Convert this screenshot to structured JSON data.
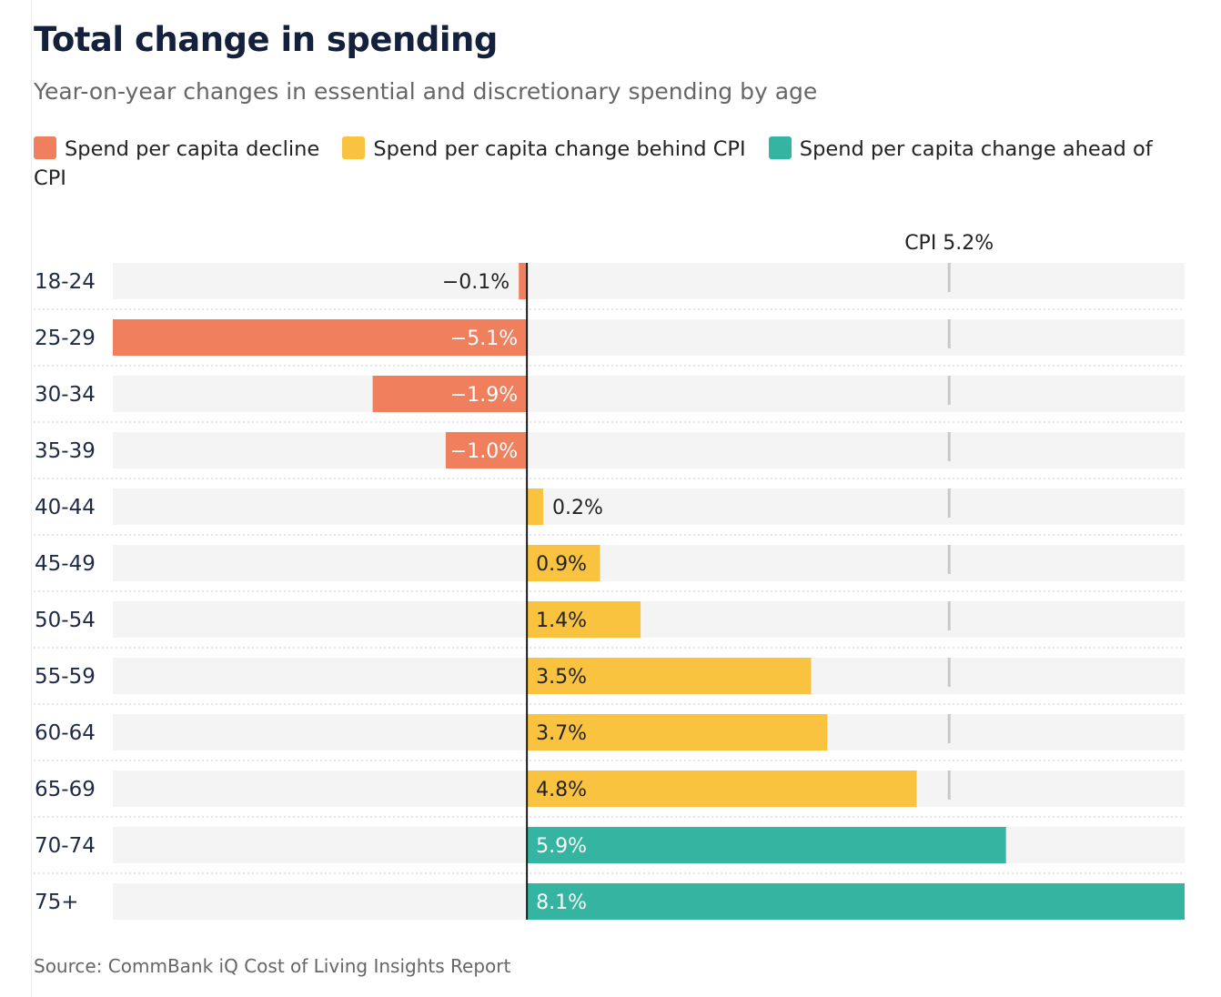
{
  "title": "Total change in spending",
  "subtitle": "Year-on-year changes in essential and discretionary spending by age",
  "legend": [
    {
      "label": "Spend per capita decline",
      "color": "#f07f5e"
    },
    {
      "label": "Spend per capita change behind CPI",
      "color": "#f9c33f"
    },
    {
      "label": "Spend per capita change ahead of CPI",
      "color": "#35b5a1"
    }
  ],
  "source": "Source: CommBank iQ Cost of Living Insights Report",
  "chart_data": {
    "type": "bar",
    "orientation": "horizontal",
    "categories": [
      "18-24",
      "25-29",
      "30-34",
      "35-39",
      "40-44",
      "45-49",
      "50-54",
      "55-59",
      "60-64",
      "65-69",
      "70-74",
      "75+"
    ],
    "values": [
      -0.1,
      -5.1,
      -1.9,
      -1.0,
      0.2,
      0.9,
      1.4,
      3.5,
      3.7,
      4.8,
      5.9,
      8.1
    ],
    "labels": [
      "−0.1%",
      "−5.1%",
      "−1.9%",
      "−1.0%",
      "0.2%",
      "0.9%",
      "1.4%",
      "3.5%",
      "3.7%",
      "4.8%",
      "5.9%",
      "8.1%"
    ],
    "xlim": [
      -5.1,
      8.1
    ],
    "reference_line": {
      "value": 5.2,
      "label": "CPI 5.2%"
    },
    "colors": {
      "decline": "#f07f5e",
      "behind_cpi": "#f9c33f",
      "ahead_cpi": "#35b5a1",
      "track": "#f4f4f4",
      "reference": "#c8c8cc",
      "zero_axis": "#1a1a1a"
    },
    "grid": false,
    "legend_position": "top"
  }
}
